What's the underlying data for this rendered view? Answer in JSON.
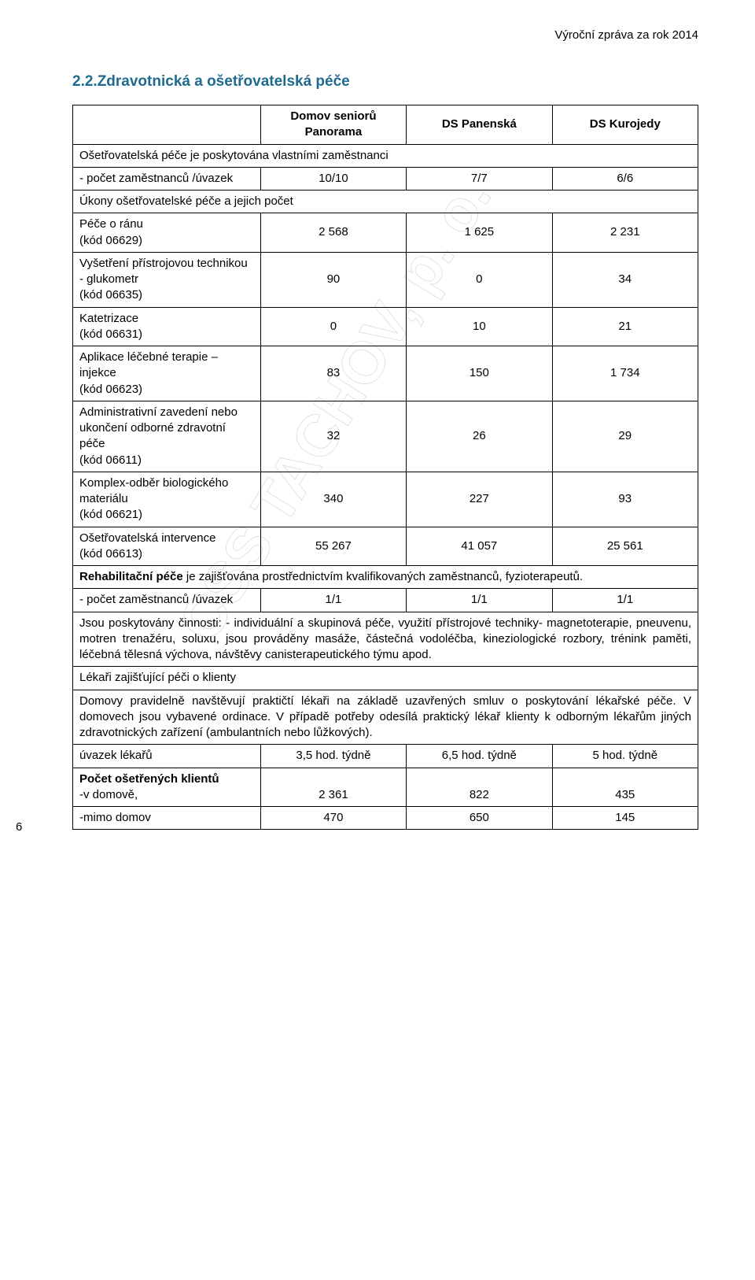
{
  "page": {
    "header_right": "Výroční zpráva za rok 2014",
    "section_title": "2.2.Zdravotnická a ošetřovatelská péče",
    "page_number": "6"
  },
  "watermark": {
    "text": "CSS TACHOV, p. o.",
    "color": "#e6e6e6",
    "fontsize": 110
  },
  "table": {
    "head": {
      "blank": "",
      "c1": "Domov seniorů Panorama",
      "c2": "DS Panenská",
      "c3": "DS Kurojedy"
    },
    "r1_span": "Ošetřovatelská péče je poskytována vlastními zaměstnanci",
    "r2": {
      "label": "- počet zaměstnanců /úvazek",
      "v1": "10/10",
      "v2": "7/7",
      "v3": "6/6"
    },
    "r3_span": "Úkony ošetřovatelské péče a jejich počet",
    "r4": {
      "label": "Péče o ránu\n(kód 06629)",
      "v1": "2 568",
      "v2": "1 625",
      "v3": "2 231"
    },
    "r5": {
      "label": "Vyšetření přístrojovou technikou - glukometr\n(kód 06635)",
      "v1": "90",
      "v2": "0",
      "v3": "34"
    },
    "r6": {
      "label": "Katetrizace\n(kód 06631)",
      "v1": "0",
      "v2": "10",
      "v3": "21"
    },
    "r7": {
      "label": "Aplikace léčebné terapie – injekce\n(kód 06623)",
      "v1": "83",
      "v2": "150",
      "v3": "1 734"
    },
    "r8": {
      "label": "Administrativní zavedení nebo ukončení odborné zdravotní péče\n(kód 06611)",
      "v1": "32",
      "v2": "26",
      "v3": "29"
    },
    "r9": {
      "label": "Komplex-odběr biologického materiálu\n(kód 06621)",
      "v1": "340",
      "v2": "227",
      "v3": "93"
    },
    "r10": {
      "label": "Ošetřovatelská intervence\n(kód 06613)",
      "v1": "55 267",
      "v2": "41 057",
      "v3": "25 561"
    },
    "r11_span_prefix_bold": "Rehabilitační péče",
    "r11_span_rest": " je zajišťována prostřednictvím kvalifikovaných zaměstnanců, fyzioterapeutů.",
    "r12": {
      "label": "- počet zaměstnanců /úvazek",
      "v1": "1/1",
      "v2": "1/1",
      "v3": "1/1"
    },
    "r13_span": "Jsou poskytovány činnosti: - individuální a skupinová péče, využití přístrojové techniky- magnetoterapie, pneuvenu, motren trenažéru, soluxu, jsou prováděny masáže, částečná vodoléčba, kineziologické rozbory, trénink paměti, léčebná tělesná výchova, návštěvy canisterapeutického týmu apod.",
    "r14_span_bold": "Lékaři zajišťující péči o klienty",
    "r15_span": "Domovy pravidelně navštěvují praktičtí lékaři na základě uzavřených smluv o poskytování lékařské péče. V domovech jsou vybavené ordinace. V případě potřeby odesílá praktický lékař klienty k odborným lékařům jiných zdravotnických zařízení (ambulantních nebo lůžkových).",
    "r16": {
      "label": "úvazek lékařů",
      "v1": "3,5 hod. týdně",
      "v2": "6,5 hod. týdně",
      "v3": "5 hod. týdně"
    },
    "r17": {
      "label_bold1": "Počet ošetřených klientů",
      "label_rest": "-v domově,",
      "v1": "2 361",
      "v2": "822",
      "v3": "435"
    },
    "r18": {
      "label": "-mimo domov",
      "v1": "470",
      "v2": "650",
      "v3": "145"
    }
  }
}
